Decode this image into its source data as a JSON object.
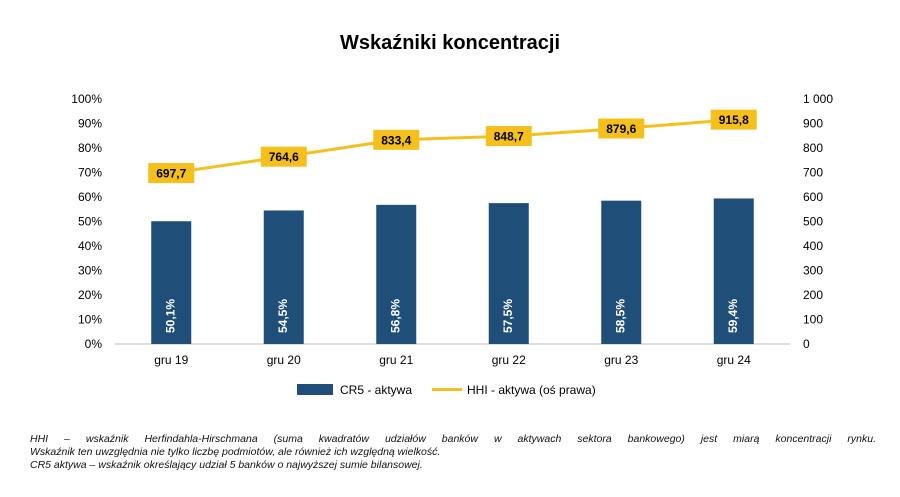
{
  "chart_data": {
    "type": "bar+line",
    "title": "Wskaźniki koncentracji",
    "categories": [
      "gru 19",
      "gru 20",
      "gru 21",
      "gru 22",
      "gru 23",
      "gru 24"
    ],
    "series": [
      {
        "name": "CR5 - aktywa",
        "type": "bar",
        "axis": "left",
        "values": [
          50.1,
          54.5,
          56.8,
          57.5,
          58.5,
          59.4
        ],
        "labels": [
          "50,1%",
          "54,5%",
          "56,8%",
          "57,5%",
          "58,5%",
          "59,4%"
        ],
        "color": "#1f4e79"
      },
      {
        "name": "HHI - aktywa (oś prawa)",
        "type": "line",
        "axis": "right",
        "values": [
          697.7,
          764.6,
          833.4,
          848.7,
          879.6,
          915.8
        ],
        "labels": [
          "697,7",
          "764,6",
          "833,4",
          "848,7",
          "879,6",
          "915,8"
        ],
        "color": "#f5c01b"
      }
    ],
    "left_axis": {
      "ylim": [
        0,
        100
      ],
      "ticks": [
        "0%",
        "10%",
        "20%",
        "30%",
        "40%",
        "50%",
        "60%",
        "70%",
        "80%",
        "90%",
        "100%"
      ]
    },
    "right_axis": {
      "ylim": [
        0,
        1000
      ],
      "ticks": [
        "0",
        "100",
        "200",
        "300",
        "400",
        "500",
        "600",
        "700",
        "800",
        "900",
        "1 000"
      ]
    },
    "grid": false,
    "legend_position": "bottom"
  },
  "footnote": {
    "line1": "HHI – wskaźnik Herfindahla-Hirschmana (suma kwadratów udziałów banków w aktywach sektora bankowego) jest miarą koncentracji rynku.",
    "line2": "Wskaźnik ten uwzględnia nie tylko liczbę podmiotów, ale również ich względną wielkość.",
    "line3": "CR5 aktywa – wskaźnik określający udział 5 banków o najwyższej sumie bilansowej."
  }
}
